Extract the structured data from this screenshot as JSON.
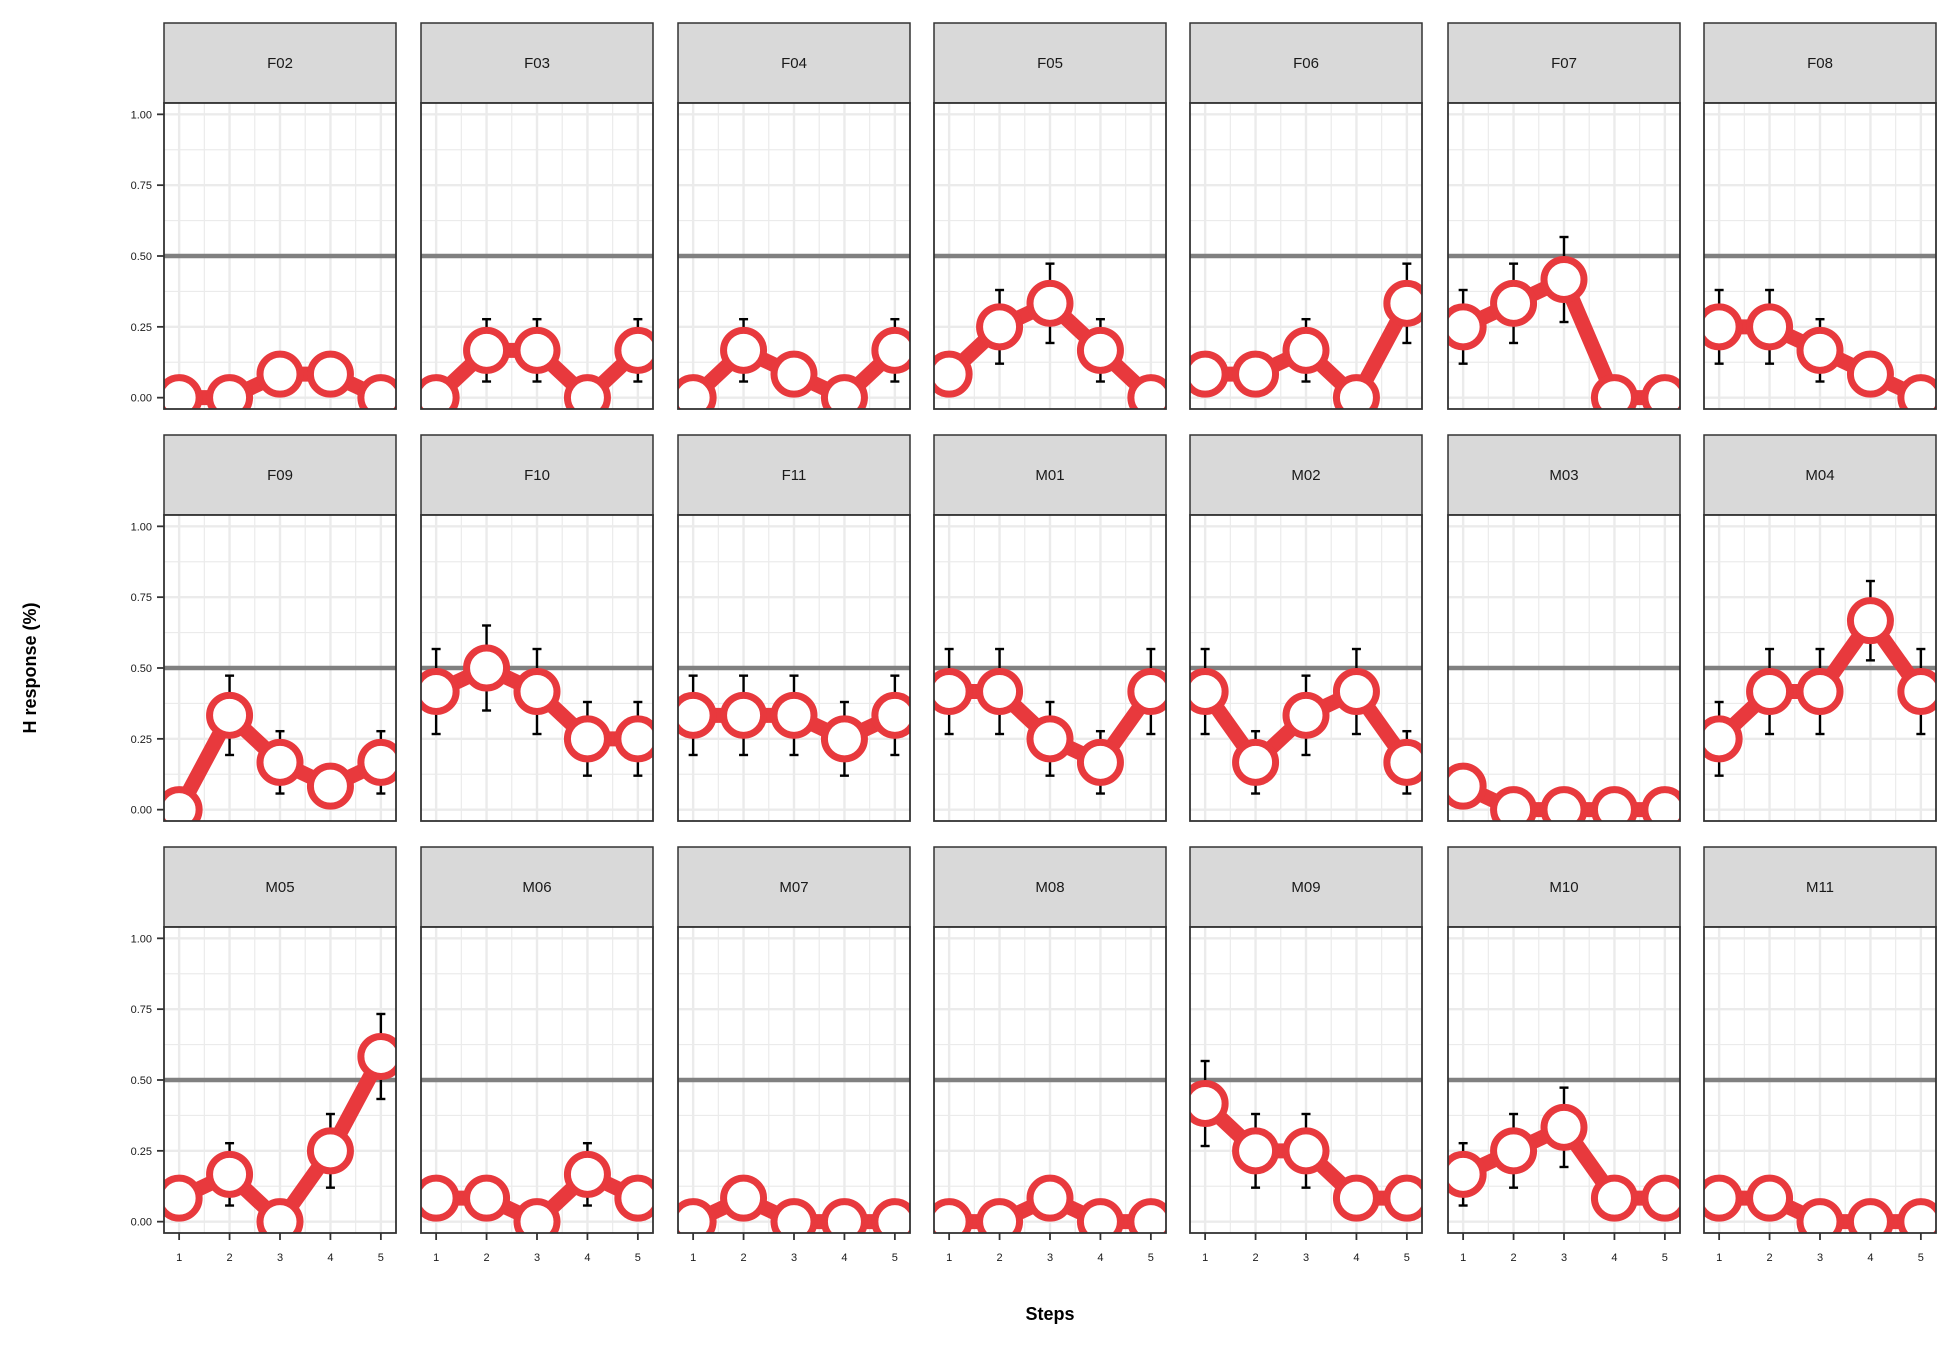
{
  "chart_data": {
    "type": "line",
    "xlabel": "Steps",
    "ylabel": "H response (%)",
    "x": [
      1,
      2,
      3,
      4,
      5
    ],
    "ylim": [
      -0.04,
      1.04
    ],
    "yticks": [
      "0.00",
      "0.25",
      "0.50",
      "0.75",
      "1.00"
    ],
    "ytick_values": [
      0,
      0.25,
      0.5,
      0.75,
      1.0
    ],
    "reference_line": 0.5,
    "grid": true,
    "colors": {
      "line": "#e8393d",
      "marker_fill": "#ffffff",
      "reference": "#808080",
      "strip_fill": "#d9d9d9",
      "grid": "#ebebeb",
      "errorbar": "#000000"
    },
    "panels": [
      {
        "name": "F02",
        "values": [
          0.0,
          0.0,
          0.083,
          0.083,
          0.0
        ],
        "errors": [
          0,
          0,
          0,
          0,
          0
        ]
      },
      {
        "name": "F03",
        "values": [
          0.0,
          0.167,
          0.167,
          0.0,
          0.167
        ],
        "errors": [
          0,
          0.11,
          0.11,
          0,
          0.11
        ]
      },
      {
        "name": "F04",
        "values": [
          0.0,
          0.167,
          0.083,
          0.0,
          0.167
        ],
        "errors": [
          0,
          0.11,
          0,
          0,
          0.11
        ]
      },
      {
        "name": "F05",
        "values": [
          0.083,
          0.25,
          0.333,
          0.167,
          0.0
        ],
        "errors": [
          0,
          0.13,
          0.14,
          0.11,
          0
        ]
      },
      {
        "name": "F06",
        "values": [
          0.083,
          0.083,
          0.167,
          0.0,
          0.333
        ],
        "errors": [
          0,
          0,
          0.11,
          0,
          0.14
        ]
      },
      {
        "name": "F07",
        "values": [
          0.25,
          0.333,
          0.417,
          0.0,
          0.0
        ],
        "errors": [
          0.13,
          0.14,
          0.15,
          0,
          0
        ]
      },
      {
        "name": "F08",
        "values": [
          0.25,
          0.25,
          0.167,
          0.083,
          0.0
        ],
        "errors": [
          0.13,
          0.13,
          0.11,
          0,
          0
        ]
      },
      {
        "name": "F09",
        "values": [
          0.0,
          0.333,
          0.167,
          0.083,
          0.167
        ],
        "errors": [
          0,
          0.14,
          0.11,
          0,
          0.11
        ]
      },
      {
        "name": "F10",
        "values": [
          0.417,
          0.5,
          0.417,
          0.25,
          0.25
        ],
        "errors": [
          0.15,
          0.15,
          0.15,
          0.13,
          0.13
        ]
      },
      {
        "name": "F11",
        "values": [
          0.333,
          0.333,
          0.333,
          0.25,
          0.333
        ],
        "errors": [
          0.14,
          0.14,
          0.14,
          0.13,
          0.14
        ]
      },
      {
        "name": "M01",
        "values": [
          0.417,
          0.417,
          0.25,
          0.167,
          0.417
        ],
        "errors": [
          0.15,
          0.15,
          0.13,
          0.11,
          0.15
        ]
      },
      {
        "name": "M02",
        "values": [
          0.417,
          0.167,
          0.333,
          0.417,
          0.167
        ],
        "errors": [
          0.15,
          0.11,
          0.14,
          0.15,
          0.11
        ]
      },
      {
        "name": "M03",
        "values": [
          0.083,
          0.0,
          0.0,
          0.0,
          0.0
        ],
        "errors": [
          0,
          0,
          0,
          0,
          0
        ]
      },
      {
        "name": "M04",
        "values": [
          0.25,
          0.417,
          0.417,
          0.667,
          0.417
        ],
        "errors": [
          0.13,
          0.15,
          0.15,
          0.14,
          0.15
        ]
      },
      {
        "name": "M05",
        "values": [
          0.083,
          0.167,
          0.0,
          0.25,
          0.583
        ],
        "errors": [
          0,
          0.11,
          0,
          0.13,
          0.15
        ]
      },
      {
        "name": "M06",
        "values": [
          0.083,
          0.083,
          0.0,
          0.167,
          0.083
        ],
        "errors": [
          0,
          0,
          0,
          0.11,
          0
        ]
      },
      {
        "name": "M07",
        "values": [
          0.0,
          0.083,
          0.0,
          0.0,
          0.0
        ],
        "errors": [
          0,
          0,
          0,
          0,
          0
        ]
      },
      {
        "name": "M08",
        "values": [
          0.0,
          0.0,
          0.083,
          0.0,
          0.0
        ],
        "errors": [
          0,
          0,
          0,
          0,
          0
        ]
      },
      {
        "name": "M09",
        "values": [
          0.417,
          0.25,
          0.25,
          0.083,
          0.083
        ],
        "errors": [
          0.15,
          0.13,
          0.13,
          0,
          0
        ]
      },
      {
        "name": "M10",
        "values": [
          0.167,
          0.25,
          0.333,
          0.083,
          0.083
        ],
        "errors": [
          0.11,
          0.13,
          0.14,
          0,
          0
        ]
      },
      {
        "name": "M11",
        "values": [
          0.083,
          0.083,
          0.0,
          0.0,
          0.0
        ],
        "errors": [
          0,
          0,
          0,
          0,
          0
        ]
      }
    ]
  }
}
